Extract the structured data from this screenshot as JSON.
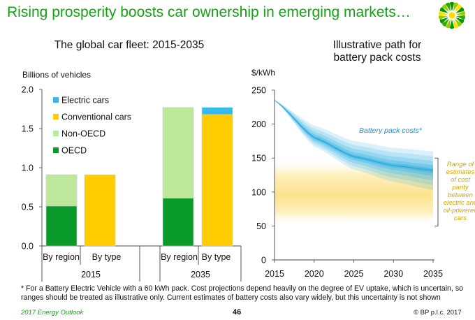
{
  "header": {
    "title": "Rising prosperity boosts car ownership in emerging markets…"
  },
  "colors": {
    "title_green": "#12a312",
    "oecd": "#0a9a2a",
    "non_oecd": "#bde79a",
    "conventional": "#ffcc00",
    "electric": "#33bbee",
    "band_yellow": "#fde9a0",
    "band_blue": "#22aadd"
  },
  "left_chart": {
    "title": "The global car fleet: 2015-2035"
  },
  "right_chart": {
    "title_line1": "Illustrative path for",
    "title_line2": "battery pack costs"
  },
  "chart_data": [
    {
      "type": "bar",
      "stacked": true,
      "title": "The global car fleet: 2015-2035",
      "ylabel": "Billions of vehicles",
      "ylim": [
        0,
        2.0
      ],
      "yticks": [
        "0.0",
        "0.5",
        "1.0",
        "1.5",
        "2.0"
      ],
      "categories": [
        "By region",
        "By type",
        "By region",
        "By type"
      ],
      "groups": [
        "2015",
        "2035"
      ],
      "legend": [
        "Electric cars",
        "Conventional cars",
        "Non-OECD",
        "OECD"
      ],
      "series": [
        {
          "name": "OECD",
          "values": [
            0.51,
            0,
            0.61,
            0
          ]
        },
        {
          "name": "Non-OECD",
          "values": [
            0.4,
            0,
            1.16,
            0
          ]
        },
        {
          "name": "Conventional cars",
          "values": [
            0,
            0.91,
            0,
            1.68
          ]
        },
        {
          "name": "Electric cars",
          "values": [
            0,
            0,
            0,
            0.09
          ]
        }
      ]
    },
    {
      "type": "area",
      "title": "Illustrative path for battery pack costs",
      "ylabel": "$/kWh",
      "xlim": [
        2015,
        2035
      ],
      "ylim": [
        0,
        250
      ],
      "xticks": [
        "2015",
        "2020",
        "2025",
        "2030",
        "2035"
      ],
      "yticks": [
        "0",
        "50",
        "100",
        "150",
        "200",
        "250"
      ],
      "series_label": "Battery pack costs*",
      "cost_band": {
        "x": [
          2015,
          2020,
          2025,
          2030,
          2035
        ],
        "upper": [
          235,
          198,
          175,
          165,
          160
        ],
        "central": [
          235,
          180,
          152,
          139,
          132
        ],
        "lower": [
          235,
          167,
          133,
          115,
          103
        ]
      },
      "parity_range": {
        "low": 50,
        "high": 150,
        "label": [
          "Range of",
          "estimates",
          "of cost",
          "parity",
          "between",
          "electric and",
          "oil-powered",
          "cars"
        ]
      }
    }
  ],
  "footer": {
    "footnote": "* For a Battery Electric Vehicle with a 60 kWh pack. Cost projections depend heavily on the degree of EV uptake, which is uncertain, so ranges should be treated as illustrative only. Current estimates of battery costs also vary widely, but this uncertainty is not shown",
    "source": "2017 Energy Outlook",
    "page": "46",
    "copyright": "© BP p.l.c. 2017"
  }
}
